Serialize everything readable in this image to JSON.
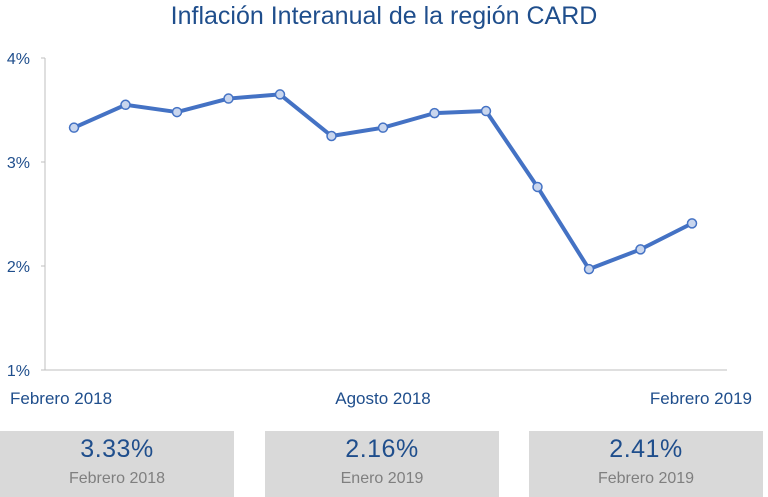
{
  "title": "Inflación Interanual de la región CARD",
  "chart_data": {
    "type": "line",
    "title": "Inflación Interanual de la región CARD",
    "x": [
      "Feb 2018",
      "Mar 2018",
      "Abr 2018",
      "May 2018",
      "Jun 2018",
      "Jul 2018",
      "Ago 2018",
      "Sep 2018",
      "Oct 2018",
      "Nov 2018",
      "Dic 2018",
      "Ene 2019",
      "Feb 2019"
    ],
    "y": [
      3.33,
      3.55,
      3.48,
      3.61,
      3.65,
      3.25,
      3.33,
      3.47,
      3.49,
      2.76,
      1.97,
      2.16,
      2.41
    ],
    "xticks": [
      {
        "index": 0,
        "label": "Febrero 2018"
      },
      {
        "index": 6,
        "label": "Agosto 2018"
      },
      {
        "index": 12,
        "label": "Febrero 2019"
      }
    ],
    "yticks": [
      {
        "value": 1,
        "label": "1%"
      },
      {
        "value": 2,
        "label": "2%"
      },
      {
        "value": 3,
        "label": "3%"
      },
      {
        "value": 4,
        "label": "4%"
      }
    ],
    "ylim": [
      1,
      4
    ],
    "line_color": "#4472c4",
    "marker_fill": "#c9d6ee",
    "grid": false
  },
  "stats": [
    {
      "value": "3.33%",
      "label": "Febrero 2018"
    },
    {
      "value": "2.16%",
      "label": "Enero 2019"
    },
    {
      "value": "2.41%",
      "label": "Febrero 2019"
    }
  ]
}
